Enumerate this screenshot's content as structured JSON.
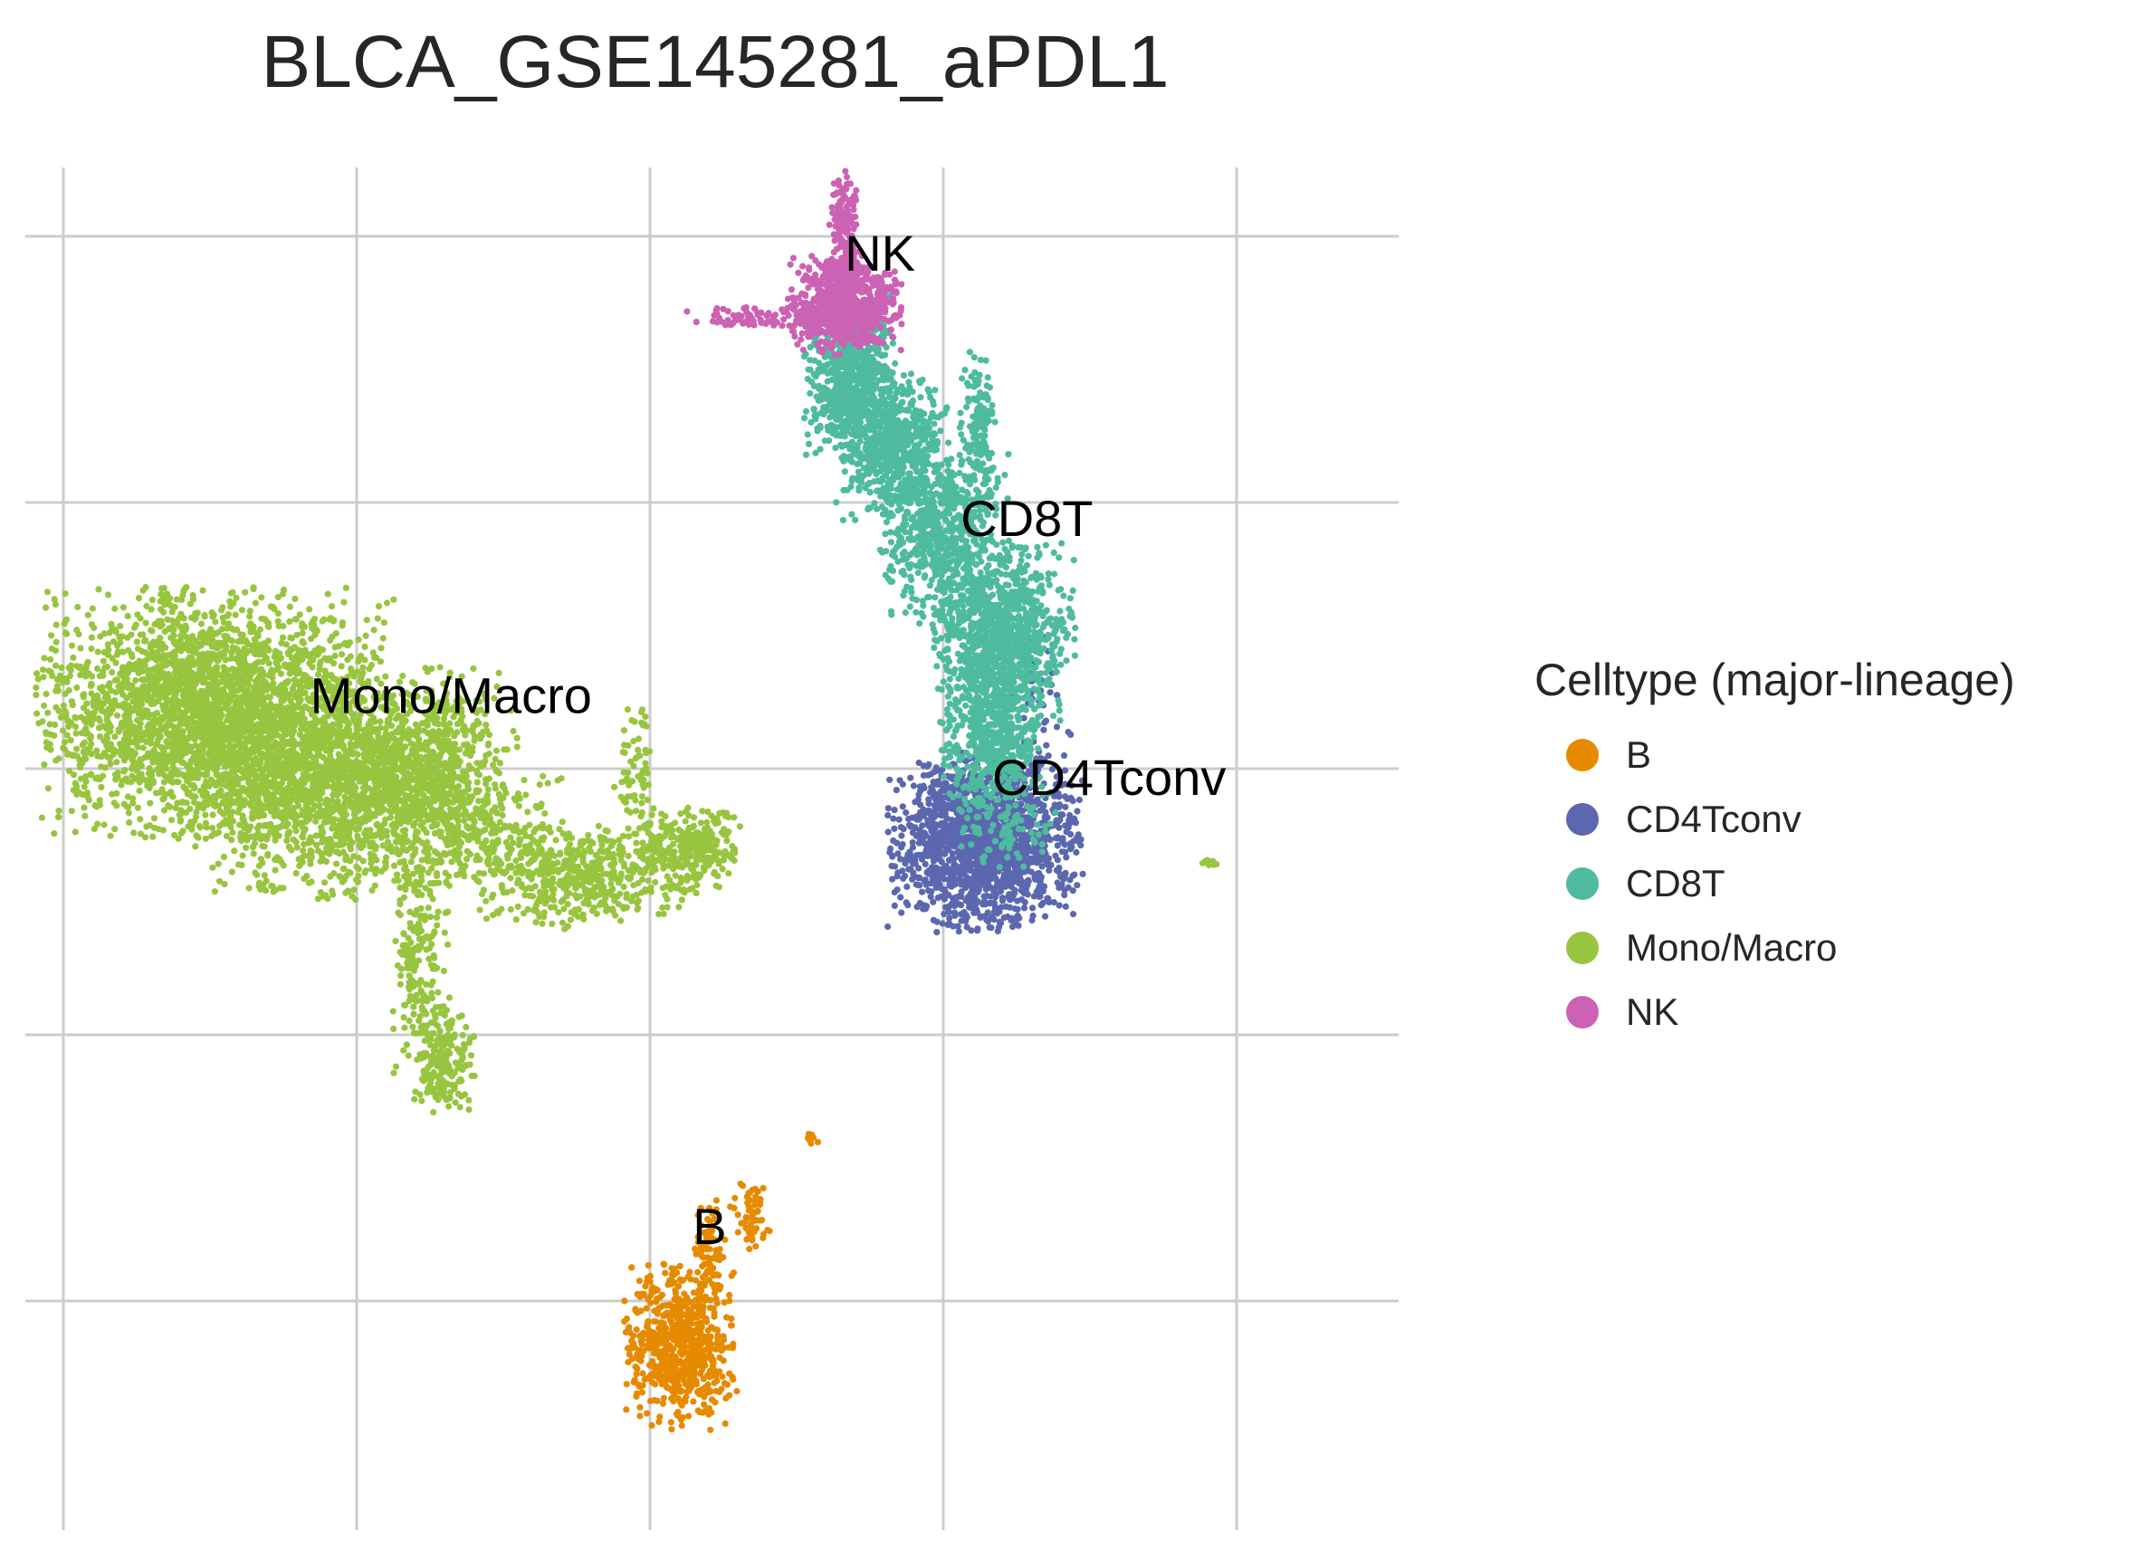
{
  "chart_data": {
    "type": "scatter",
    "title": "BLCA_GSE145281_aPDL1",
    "xlabel": "",
    "ylabel": "",
    "xlim": [
      0,
      10
    ],
    "ylim": [
      0,
      10
    ],
    "grid": true,
    "legend": {
      "title": "Celltype (major-lineage)",
      "placement": "right"
    },
    "series": [
      {
        "name": "B",
        "color": "#E68A00",
        "label": "B",
        "label_at": [
          5.5,
          2.1
        ],
        "clusters": [
          {
            "center": [
              5.25,
              1.35
            ],
            "spread": [
              0.22,
              0.28
            ],
            "count": 650
          },
          {
            "center": [
              5.5,
              2.05
            ],
            "spread": [
              0.06,
              0.2
            ],
            "count": 90
          },
          {
            "center": [
              5.85,
              2.3
            ],
            "spread": [
              0.08,
              0.12
            ],
            "count": 60
          },
          {
            "center": [
              6.37,
              2.86
            ],
            "spread": [
              0.03,
              0.03
            ],
            "count": 8
          }
        ]
      },
      {
        "name": "CD4Tconv",
        "color": "#5B67AF",
        "label": "CD4Tconv",
        "label_at": [
          8.9,
          5.4
        ],
        "clusters": [
          {
            "center": [
              7.85,
              5.05
            ],
            "spread": [
              0.38,
              0.3
            ],
            "count": 1600
          },
          {
            "center": [
              8.3,
              5.9
            ],
            "spread": [
              0.15,
              0.35
            ],
            "count": 60
          }
        ]
      },
      {
        "name": "CD8T",
        "color": "#4EBB9F",
        "label": "CD8T",
        "label_at": [
          8.2,
          7.3
        ],
        "clusters": [
          {
            "center": [
              6.7,
              8.45
            ],
            "spread": [
              0.18,
              0.28
            ],
            "count": 700
          },
          {
            "center": [
              7.05,
              7.95
            ],
            "spread": [
              0.22,
              0.25
            ],
            "count": 600
          },
          {
            "center": [
              7.5,
              7.3
            ],
            "spread": [
              0.25,
              0.3
            ],
            "count": 600
          },
          {
            "center": [
              8.0,
              6.6
            ],
            "spread": [
              0.28,
              0.3
            ],
            "count": 900
          },
          {
            "center": [
              7.9,
              5.9
            ],
            "spread": [
              0.2,
              0.35
            ],
            "count": 650
          },
          {
            "center": [
              7.8,
              8.05
            ],
            "spread": [
              0.08,
              0.3
            ],
            "count": 150
          },
          {
            "center": [
              8.05,
              5.15
            ],
            "spread": [
              0.2,
              0.15
            ],
            "count": 60
          }
        ]
      },
      {
        "name": "Mono/Macro",
        "color": "#98C53F",
        "label": "Mono/Macro",
        "label_at": [
          3.3,
          6.0
        ],
        "clusters": [
          {
            "center": [
              1.3,
              6.0
            ],
            "spread": [
              0.7,
              0.42
            ],
            "count": 3000
          },
          {
            "center": [
              2.4,
              5.4
            ],
            "spread": [
              0.6,
              0.35
            ],
            "count": 1500
          },
          {
            "center": [
              3.1,
              5.7
            ],
            "spread": [
              0.35,
              0.3
            ],
            "count": 500
          },
          {
            "center": [
              4.4,
              4.8
            ],
            "spread": [
              0.4,
              0.18
            ],
            "count": 500
          },
          {
            "center": [
              5.35,
              5.0
            ],
            "spread": [
              0.2,
              0.15
            ],
            "count": 300
          },
          {
            "center": [
              3.6,
              5.15
            ],
            "spread": [
              0.35,
              0.22
            ],
            "count": 250
          },
          {
            "center": [
              3.05,
              4.2
            ],
            "spread": [
              0.12,
              0.45
            ],
            "count": 220
          },
          {
            "center": [
              3.25,
              3.45
            ],
            "spread": [
              0.12,
              0.18
            ],
            "count": 200
          },
          {
            "center": [
              4.85,
              5.45
            ],
            "spread": [
              0.08,
              0.3
            ],
            "count": 80
          },
          {
            "center": [
              9.75,
              4.9
            ],
            "spread": [
              0.03,
              0.01
            ],
            "count": 10
          }
        ]
      },
      {
        "name": "NK",
        "color": "#CC62B3",
        "label": "NK",
        "label_at": [
          6.95,
          9.25
        ],
        "clusters": [
          {
            "center": [
              6.65,
              9.0
            ],
            "spread": [
              0.22,
              0.17
            ],
            "count": 700
          },
          {
            "center": [
              6.65,
              9.6
            ],
            "spread": [
              0.06,
              0.2
            ],
            "count": 150
          },
          {
            "center": [
              5.95,
              8.9
            ],
            "spread": [
              0.35,
              0.04
            ],
            "count": 80
          }
        ]
      }
    ]
  }
}
